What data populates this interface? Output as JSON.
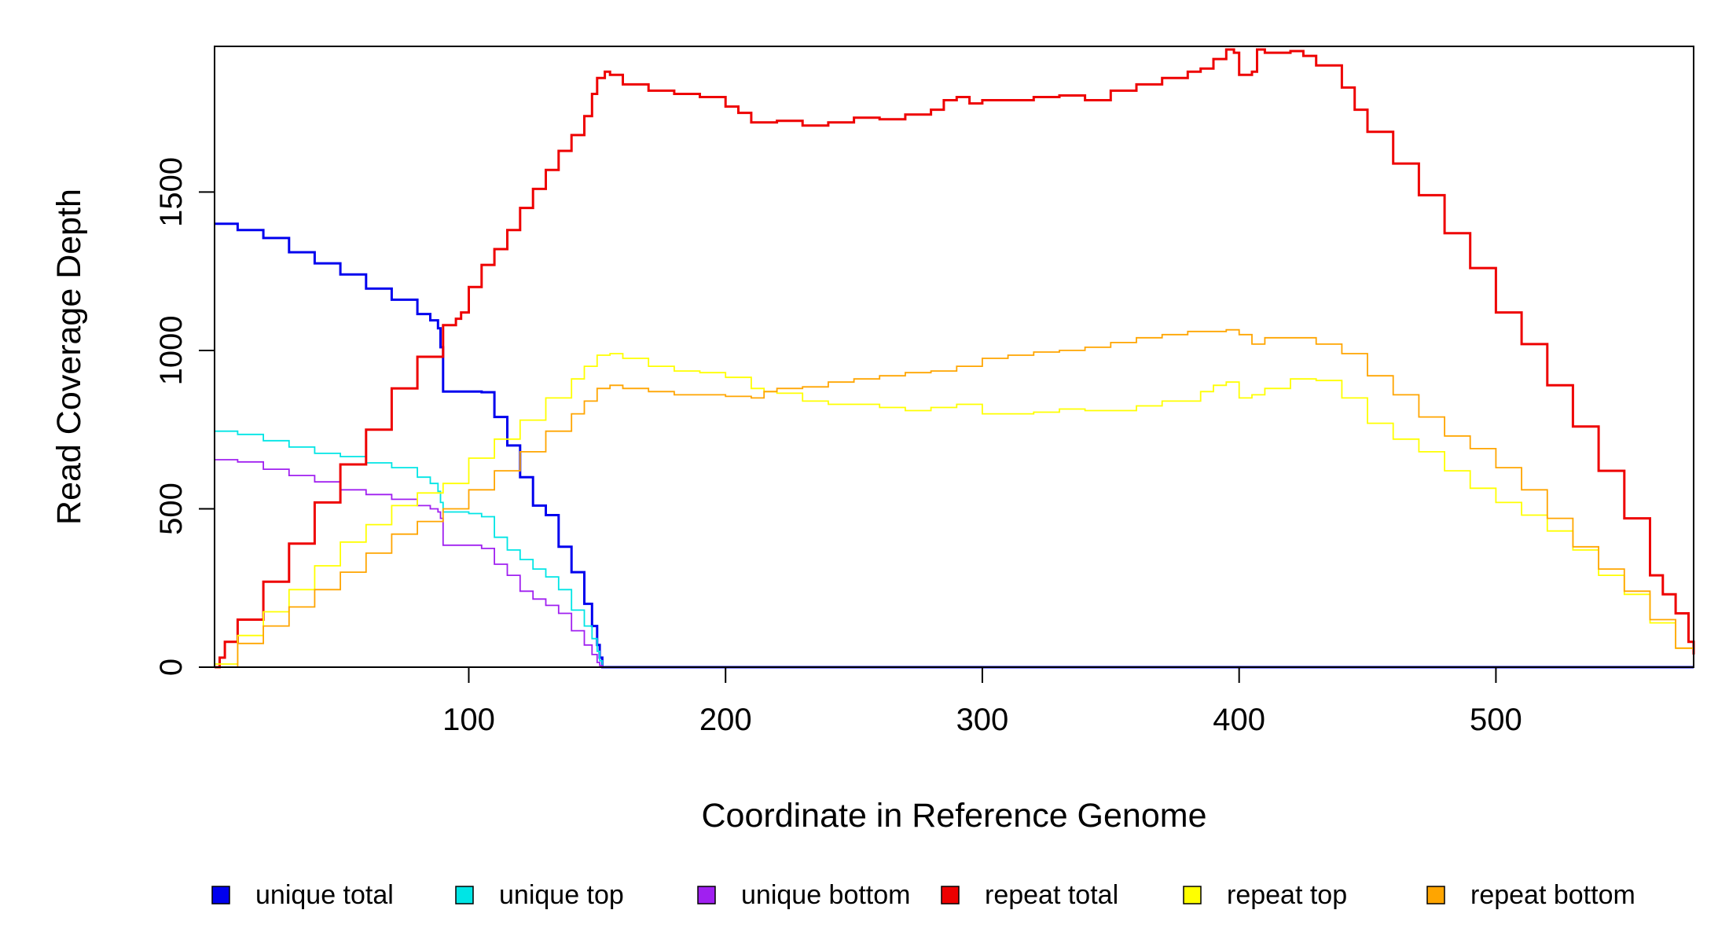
{
  "chart_data": {
    "type": "line",
    "title": "",
    "xlabel": "Coordinate in Reference Genome",
    "ylabel": "Read Coverage Depth",
    "xlim": [
      1,
      577
    ],
    "ylim": [
      0,
      1960
    ],
    "x_ticks": [
      100,
      200,
      300,
      400,
      500
    ],
    "y_ticks": [
      0,
      500,
      1000,
      1500
    ],
    "grid": false,
    "legend_position": "bottom",
    "series": [
      {
        "name": "unique total",
        "color": "#0000EE",
        "points": [
          [
            1,
            1400
          ],
          [
            10,
            1380
          ],
          [
            20,
            1355
          ],
          [
            30,
            1310
          ],
          [
            40,
            1275
          ],
          [
            50,
            1240
          ],
          [
            60,
            1195
          ],
          [
            70,
            1160
          ],
          [
            80,
            1115
          ],
          [
            85,
            1095
          ],
          [
            88,
            1070
          ],
          [
            89,
            1010
          ],
          [
            90,
            870
          ],
          [
            100,
            870
          ],
          [
            105,
            868
          ],
          [
            110,
            790
          ],
          [
            115,
            700
          ],
          [
            120,
            600
          ],
          [
            125,
            510
          ],
          [
            130,
            480
          ],
          [
            135,
            380
          ],
          [
            140,
            300
          ],
          [
            145,
            200
          ],
          [
            148,
            130
          ],
          [
            150,
            70
          ],
          [
            151,
            30
          ],
          [
            152,
            0
          ],
          [
            577,
            0
          ]
        ]
      },
      {
        "name": "unique top",
        "color": "#00E5E5",
        "points": [
          [
            1,
            745
          ],
          [
            10,
            735
          ],
          [
            20,
            715
          ],
          [
            30,
            695
          ],
          [
            40,
            675
          ],
          [
            50,
            665
          ],
          [
            60,
            645
          ],
          [
            70,
            630
          ],
          [
            80,
            600
          ],
          [
            85,
            580
          ],
          [
            88,
            555
          ],
          [
            89,
            520
          ],
          [
            90,
            490
          ],
          [
            100,
            485
          ],
          [
            105,
            475
          ],
          [
            110,
            410
          ],
          [
            115,
            370
          ],
          [
            120,
            340
          ],
          [
            125,
            310
          ],
          [
            130,
            285
          ],
          [
            135,
            245
          ],
          [
            140,
            180
          ],
          [
            145,
            130
          ],
          [
            148,
            90
          ],
          [
            150,
            50
          ],
          [
            151,
            20
          ],
          [
            152,
            0
          ],
          [
            577,
            0
          ]
        ]
      },
      {
        "name": "unique bottom",
        "color": "#A020F0",
        "points": [
          [
            1,
            655
          ],
          [
            10,
            648
          ],
          [
            20,
            625
          ],
          [
            30,
            605
          ],
          [
            40,
            585
          ],
          [
            50,
            560
          ],
          [
            60,
            545
          ],
          [
            70,
            530
          ],
          [
            80,
            510
          ],
          [
            85,
            500
          ],
          [
            88,
            490
          ],
          [
            89,
            470
          ],
          [
            90,
            385
          ],
          [
            100,
            385
          ],
          [
            105,
            375
          ],
          [
            110,
            325
          ],
          [
            115,
            290
          ],
          [
            120,
            240
          ],
          [
            125,
            215
          ],
          [
            130,
            195
          ],
          [
            135,
            170
          ],
          [
            140,
            115
          ],
          [
            145,
            70
          ],
          [
            148,
            40
          ],
          [
            150,
            15
          ],
          [
            151,
            5
          ],
          [
            152,
            0
          ],
          [
            577,
            0
          ]
        ]
      },
      {
        "name": "repeat total",
        "color": "#EE0000",
        "points": [
          [
            1,
            0
          ],
          [
            3,
            30
          ],
          [
            5,
            80
          ],
          [
            10,
            150
          ],
          [
            20,
            270
          ],
          [
            30,
            390
          ],
          [
            40,
            520
          ],
          [
            50,
            640
          ],
          [
            60,
            750
          ],
          [
            70,
            880
          ],
          [
            80,
            980
          ],
          [
            90,
            1080
          ],
          [
            95,
            1100
          ],
          [
            97,
            1120
          ],
          [
            100,
            1200
          ],
          [
            105,
            1270
          ],
          [
            110,
            1320
          ],
          [
            115,
            1380
          ],
          [
            120,
            1450
          ],
          [
            125,
            1510
          ],
          [
            130,
            1570
          ],
          [
            135,
            1630
          ],
          [
            140,
            1680
          ],
          [
            145,
            1740
          ],
          [
            148,
            1810
          ],
          [
            150,
            1860
          ],
          [
            153,
            1880
          ],
          [
            155,
            1870
          ],
          [
            160,
            1840
          ],
          [
            170,
            1820
          ],
          [
            180,
            1810
          ],
          [
            190,
            1800
          ],
          [
            200,
            1770
          ],
          [
            205,
            1750
          ],
          [
            210,
            1720
          ],
          [
            220,
            1725
          ],
          [
            230,
            1710
          ],
          [
            240,
            1720
          ],
          [
            250,
            1735
          ],
          [
            260,
            1730
          ],
          [
            270,
            1745
          ],
          [
            280,
            1760
          ],
          [
            285,
            1790
          ],
          [
            290,
            1800
          ],
          [
            295,
            1780
          ],
          [
            300,
            1790
          ],
          [
            310,
            1790
          ],
          [
            320,
            1800
          ],
          [
            330,
            1805
          ],
          [
            340,
            1790
          ],
          [
            350,
            1820
          ],
          [
            360,
            1840
          ],
          [
            370,
            1860
          ],
          [
            380,
            1880
          ],
          [
            385,
            1890
          ],
          [
            390,
            1920
          ],
          [
            395,
            1950
          ],
          [
            398,
            1940
          ],
          [
            400,
            1870
          ],
          [
            405,
            1880
          ],
          [
            407,
            1950
          ],
          [
            410,
            1940
          ],
          [
            420,
            1945
          ],
          [
            425,
            1930
          ],
          [
            430,
            1900
          ],
          [
            440,
            1830
          ],
          [
            445,
            1760
          ],
          [
            450,
            1690
          ],
          [
            460,
            1590
          ],
          [
            470,
            1490
          ],
          [
            480,
            1370
          ],
          [
            490,
            1260
          ],
          [
            500,
            1120
          ],
          [
            510,
            1020
          ],
          [
            520,
            890
          ],
          [
            530,
            760
          ],
          [
            540,
            620
          ],
          [
            550,
            470
          ],
          [
            560,
            290
          ],
          [
            565,
            230
          ],
          [
            570,
            170
          ],
          [
            575,
            80
          ],
          [
            577,
            40
          ]
        ]
      },
      {
        "name": "repeat top",
        "color": "#FFFF00",
        "points": [
          [
            1,
            10
          ],
          [
            10,
            100
          ],
          [
            20,
            175
          ],
          [
            30,
            245
          ],
          [
            40,
            320
          ],
          [
            50,
            395
          ],
          [
            60,
            450
          ],
          [
            70,
            510
          ],
          [
            80,
            550
          ],
          [
            90,
            580
          ],
          [
            100,
            660
          ],
          [
            110,
            720
          ],
          [
            120,
            780
          ],
          [
            130,
            850
          ],
          [
            140,
            910
          ],
          [
            145,
            950
          ],
          [
            150,
            985
          ],
          [
            155,
            990
          ],
          [
            160,
            975
          ],
          [
            170,
            950
          ],
          [
            180,
            935
          ],
          [
            190,
            930
          ],
          [
            200,
            915
          ],
          [
            210,
            880
          ],
          [
            215,
            870
          ],
          [
            220,
            865
          ],
          [
            230,
            840
          ],
          [
            240,
            830
          ],
          [
            250,
            830
          ],
          [
            260,
            820
          ],
          [
            270,
            810
          ],
          [
            280,
            820
          ],
          [
            290,
            830
          ],
          [
            295,
            830
          ],
          [
            300,
            800
          ],
          [
            310,
            800
          ],
          [
            320,
            805
          ],
          [
            330,
            815
          ],
          [
            340,
            810
          ],
          [
            350,
            810
          ],
          [
            360,
            825
          ],
          [
            370,
            840
          ],
          [
            380,
            840
          ],
          [
            385,
            870
          ],
          [
            390,
            890
          ],
          [
            395,
            900
          ],
          [
            400,
            850
          ],
          [
            405,
            860
          ],
          [
            410,
            880
          ],
          [
            420,
            910
          ],
          [
            430,
            905
          ],
          [
            440,
            850
          ],
          [
            450,
            770
          ],
          [
            460,
            720
          ],
          [
            470,
            680
          ],
          [
            480,
            620
          ],
          [
            490,
            565
          ],
          [
            500,
            520
          ],
          [
            510,
            480
          ],
          [
            520,
            430
          ],
          [
            530,
            370
          ],
          [
            540,
            290
          ],
          [
            550,
            230
          ],
          [
            560,
            140
          ],
          [
            570,
            60
          ],
          [
            577,
            10
          ]
        ]
      },
      {
        "name": "repeat bottom",
        "color": "#FFA500",
        "points": [
          [
            1,
            0
          ],
          [
            10,
            75
          ],
          [
            20,
            130
          ],
          [
            30,
            190
          ],
          [
            40,
            245
          ],
          [
            50,
            300
          ],
          [
            60,
            360
          ],
          [
            70,
            420
          ],
          [
            80,
            460
          ],
          [
            90,
            500
          ],
          [
            100,
            560
          ],
          [
            110,
            620
          ],
          [
            120,
            680
          ],
          [
            130,
            745
          ],
          [
            140,
            800
          ],
          [
            145,
            840
          ],
          [
            150,
            880
          ],
          [
            155,
            890
          ],
          [
            160,
            880
          ],
          [
            170,
            870
          ],
          [
            180,
            860
          ],
          [
            190,
            860
          ],
          [
            200,
            855
          ],
          [
            210,
            850
          ],
          [
            215,
            870
          ],
          [
            220,
            880
          ],
          [
            230,
            885
          ],
          [
            240,
            900
          ],
          [
            250,
            910
          ],
          [
            260,
            920
          ],
          [
            270,
            930
          ],
          [
            280,
            935
          ],
          [
            290,
            950
          ],
          [
            300,
            975
          ],
          [
            310,
            985
          ],
          [
            320,
            995
          ],
          [
            330,
            1000
          ],
          [
            340,
            1010
          ],
          [
            350,
            1025
          ],
          [
            360,
            1040
          ],
          [
            370,
            1050
          ],
          [
            380,
            1060
          ],
          [
            390,
            1060
          ],
          [
            395,
            1065
          ],
          [
            400,
            1050
          ],
          [
            405,
            1020
          ],
          [
            410,
            1040
          ],
          [
            420,
            1040
          ],
          [
            430,
            1020
          ],
          [
            440,
            990
          ],
          [
            450,
            920
          ],
          [
            460,
            860
          ],
          [
            470,
            790
          ],
          [
            480,
            730
          ],
          [
            490,
            690
          ],
          [
            500,
            630
          ],
          [
            510,
            560
          ],
          [
            520,
            470
          ],
          [
            530,
            380
          ],
          [
            540,
            310
          ],
          [
            550,
            240
          ],
          [
            560,
            150
          ],
          [
            570,
            60
          ],
          [
            577,
            5
          ]
        ]
      }
    ]
  }
}
